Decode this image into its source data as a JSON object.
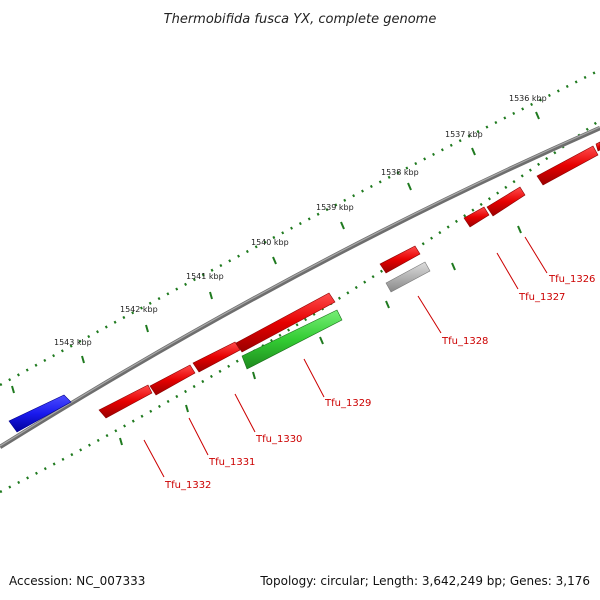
{
  "title": "Thermobifida fusca YX, complete genome",
  "accession": "Accession: NC_007333",
  "summary": "Topology: circular; Length: 3,642,249 bp; Genes: 3,176",
  "colors": {
    "backbone": "#7a7a7a",
    "ticks": "#1f7a1f",
    "forward_gene": "#e60000",
    "reverse_gene": "#e60000",
    "highlight_gene": "#33cc33",
    "other_feature": "#1a1aee",
    "pseudo_feature": "#b3b3b3",
    "label": "#cc0000"
  },
  "scale_labels": [
    "1543 kbp",
    "1542 kbp",
    "1541 kbp",
    "1540 kbp",
    "1539 kbp",
    "1538 kbp",
    "1537 kbp",
    "1536 kbp"
  ],
  "gene_labels": [
    "Tfu_1332",
    "Tfu_1331",
    "Tfu_1330",
    "Tfu_1329",
    "Tfu_1328",
    "Tfu_1327",
    "Tfu_1326"
  ]
}
